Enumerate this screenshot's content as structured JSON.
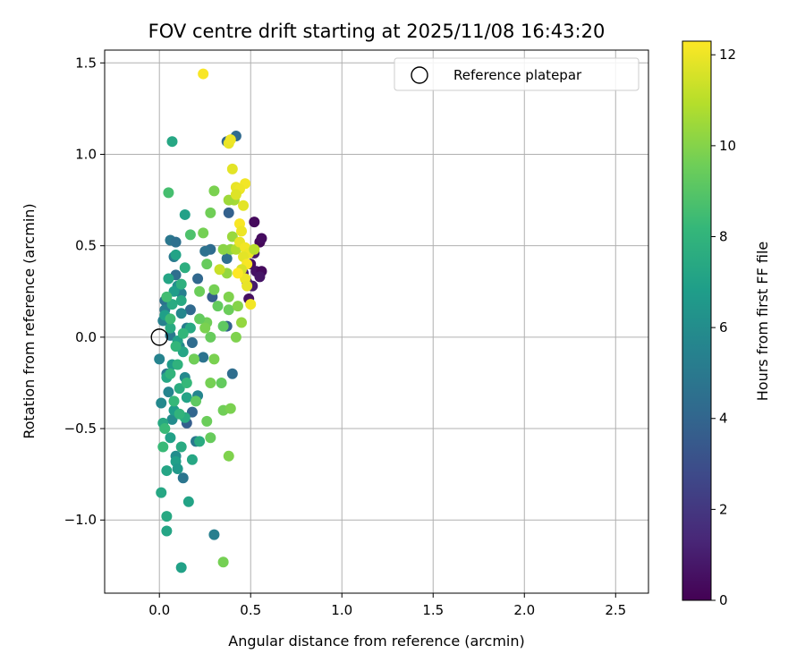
{
  "chart_data": {
    "type": "scatter",
    "title": "FOV centre drift starting at 2025/11/08 16:43:20",
    "xlabel": "Angular distance from reference (arcmin)",
    "ylabel": "Rotation from reference (arcmin)",
    "xlim": [
      -0.3,
      2.68
    ],
    "ylim": [
      -1.4,
      1.57
    ],
    "xticks": [
      0.0,
      0.5,
      1.0,
      1.5,
      2.0,
      2.5
    ],
    "xtick_labels": [
      "0.0",
      "0.5",
      "1.0",
      "1.5",
      "2.0",
      "2.5"
    ],
    "yticks": [
      -1.0,
      -0.5,
      0.0,
      0.5,
      1.0,
      1.5
    ],
    "ytick_labels": [
      "−1.0",
      "−0.5",
      "0.0",
      "0.5",
      "1.0",
      "1.5"
    ],
    "grid": true,
    "legend": {
      "position": "top-right",
      "entries": [
        "Reference platepar"
      ]
    },
    "reference_point": {
      "x": 0.0,
      "y": 0.0,
      "label": "Reference platepar"
    },
    "colorbar": {
      "label": "Hours from first FF file",
      "colormap": "viridis",
      "range": [
        0,
        12.3
      ],
      "ticks": [
        0,
        2,
        4,
        6,
        8,
        10,
        12
      ],
      "tick_labels": [
        "0",
        "2",
        "4",
        "6",
        "8",
        "10",
        "12"
      ],
      "stops": [
        "#440154",
        "#482878",
        "#3e4989",
        "#31688e",
        "#26828e",
        "#1f9e89",
        "#35b779",
        "#6ece58",
        "#b5de2b",
        "#fde725"
      ]
    },
    "points": [
      {
        "x": 0.52,
        "y": 0.63,
        "t": 0.3
      },
      {
        "x": 0.55,
        "y": 0.52,
        "t": 0.2
      },
      {
        "x": 0.56,
        "y": 0.54,
        "t": 0.4
      },
      {
        "x": 0.5,
        "y": 0.4,
        "t": 0.5
      },
      {
        "x": 0.53,
        "y": 0.36,
        "t": 0.6
      },
      {
        "x": 0.56,
        "y": 0.36,
        "t": 0.3
      },
      {
        "x": 0.55,
        "y": 0.33,
        "t": 0.7
      },
      {
        "x": 0.52,
        "y": 0.46,
        "t": 0.8
      },
      {
        "x": 0.49,
        "y": 0.21,
        "t": 0.5
      },
      {
        "x": 0.48,
        "y": 0.3,
        "t": 1.0
      },
      {
        "x": 0.51,
        "y": 0.28,
        "t": 0.9
      },
      {
        "x": 0.46,
        "y": 0.35,
        "t": 1.2
      },
      {
        "x": 0.42,
        "y": 1.1,
        "t": 4.2
      },
      {
        "x": 0.37,
        "y": 1.07,
        "t": 4.0
      },
      {
        "x": 0.38,
        "y": 0.68,
        "t": 3.8
      },
      {
        "x": 0.37,
        "y": 0.43,
        "t": 4.5
      },
      {
        "x": 0.28,
        "y": 0.48,
        "t": 4.3
      },
      {
        "x": 0.29,
        "y": 0.22,
        "t": 3.6
      },
      {
        "x": 0.25,
        "y": 0.47,
        "t": 4.6
      },
      {
        "x": 0.21,
        "y": 0.32,
        "t": 4.1
      },
      {
        "x": 0.37,
        "y": 0.06,
        "t": 3.9
      },
      {
        "x": 0.4,
        "y": -0.2,
        "t": 4.4
      },
      {
        "x": 0.24,
        "y": -0.11,
        "t": 4.7
      },
      {
        "x": 0.17,
        "y": 0.15,
        "t": 4.2
      },
      {
        "x": 0.15,
        "y": -0.47,
        "t": 3.7
      },
      {
        "x": 0.18,
        "y": -0.41,
        "t": 4.0
      },
      {
        "x": 0.13,
        "y": -0.77,
        "t": 4.8
      },
      {
        "x": 0.2,
        "y": -0.57,
        "t": 5.0
      },
      {
        "x": 0.06,
        "y": 0.53,
        "t": 4.9
      },
      {
        "x": 0.09,
        "y": 0.52,
        "t": 4.5
      },
      {
        "x": 0.08,
        "y": 0.44,
        "t": 5.1
      },
      {
        "x": 0.09,
        "y": 0.34,
        "t": 4.4
      },
      {
        "x": 0.03,
        "y": 0.2,
        "t": 4.6
      },
      {
        "x": 0.12,
        "y": 0.24,
        "t": 5.3
      },
      {
        "x": 0.15,
        "y": 0.05,
        "t": 5.2
      },
      {
        "x": 0.18,
        "y": -0.03,
        "t": 4.3
      },
      {
        "x": 0.0,
        "y": -0.12,
        "t": 5.5
      },
      {
        "x": 0.05,
        "y": -0.3,
        "t": 5.6
      },
      {
        "x": 0.11,
        "y": -0.05,
        "t": 5.7
      },
      {
        "x": 0.02,
        "y": 0.09,
        "t": 5.4
      },
      {
        "x": 0.07,
        "y": -0.45,
        "t": 5.9
      },
      {
        "x": 0.14,
        "y": -0.22,
        "t": 5.8
      },
      {
        "x": 0.09,
        "y": -0.65,
        "t": 6.0
      },
      {
        "x": 0.06,
        "y": 0.01,
        "t": 5.0
      },
      {
        "x": 0.21,
        "y": -0.32,
        "t": 5.6
      },
      {
        "x": 0.12,
        "y": 0.13,
        "t": 5.7
      },
      {
        "x": 0.04,
        "y": -0.2,
        "t": 4.9
      },
      {
        "x": 0.3,
        "y": -1.08,
        "t": 5.3
      },
      {
        "x": 0.03,
        "y": 0.15,
        "t": 5.2
      },
      {
        "x": 0.01,
        "y": -0.36,
        "t": 5.8
      },
      {
        "x": 0.1,
        "y": 0.28,
        "t": 6.1
      },
      {
        "x": 0.07,
        "y": 1.07,
        "t": 7.3
      },
      {
        "x": 0.14,
        "y": 0.67,
        "t": 7.0
      },
      {
        "x": 0.09,
        "y": 0.45,
        "t": 7.1
      },
      {
        "x": 0.05,
        "y": 0.32,
        "t": 7.2
      },
      {
        "x": 0.08,
        "y": 0.25,
        "t": 6.8
      },
      {
        "x": 0.12,
        "y": 0.2,
        "t": 7.4
      },
      {
        "x": 0.03,
        "y": 0.12,
        "t": 6.9
      },
      {
        "x": 0.06,
        "y": 0.05,
        "t": 7.5
      },
      {
        "x": 0.1,
        "y": -0.02,
        "t": 7.0
      },
      {
        "x": 0.13,
        "y": -0.08,
        "t": 7.2
      },
      {
        "x": 0.07,
        "y": -0.15,
        "t": 6.7
      },
      {
        "x": 0.04,
        "y": -0.22,
        "t": 7.3
      },
      {
        "x": 0.11,
        "y": -0.28,
        "t": 7.6
      },
      {
        "x": 0.15,
        "y": -0.33,
        "t": 7.1
      },
      {
        "x": 0.08,
        "y": -0.4,
        "t": 6.8
      },
      {
        "x": 0.02,
        "y": -0.47,
        "t": 7.4
      },
      {
        "x": 0.06,
        "y": -0.55,
        "t": 7.0
      },
      {
        "x": 0.12,
        "y": -0.6,
        "t": 7.5
      },
      {
        "x": 0.09,
        "y": -0.68,
        "t": 6.9
      },
      {
        "x": 0.04,
        "y": -0.73,
        "t": 7.2
      },
      {
        "x": 0.01,
        "y": -0.85,
        "t": 7.3
      },
      {
        "x": 0.16,
        "y": -0.9,
        "t": 7.1
      },
      {
        "x": 0.04,
        "y": -0.98,
        "t": 7.4
      },
      {
        "x": 0.04,
        "y": -1.06,
        "t": 7.2
      },
      {
        "x": 0.12,
        "y": -1.26,
        "t": 7.0
      },
      {
        "x": 0.22,
        "y": -0.57,
        "t": 7.5
      },
      {
        "x": 0.18,
        "y": -0.67,
        "t": 7.3
      },
      {
        "x": 0.14,
        "y": -0.44,
        "t": 7.6
      },
      {
        "x": 0.19,
        "y": -0.12,
        "t": 7.1
      },
      {
        "x": 0.17,
        "y": 0.05,
        "t": 7.4
      },
      {
        "x": 0.14,
        "y": 0.38,
        "t": 7.7
      },
      {
        "x": 0.1,
        "y": -0.72,
        "t": 6.6
      },
      {
        "x": 0.07,
        "y": 0.18,
        "t": 7.5
      },
      {
        "x": 0.05,
        "y": 0.79,
        "t": 8.6
      },
      {
        "x": 0.17,
        "y": 0.56,
        "t": 8.8
      },
      {
        "x": 0.06,
        "y": -0.2,
        "t": 8.0
      },
      {
        "x": 0.08,
        "y": -0.35,
        "t": 8.2
      },
      {
        "x": 0.13,
        "y": 0.02,
        "t": 8.1
      },
      {
        "x": 0.03,
        "y": -0.5,
        "t": 8.3
      },
      {
        "x": 0.1,
        "y": -0.15,
        "t": 7.9
      },
      {
        "x": 0.06,
        "y": 0.1,
        "t": 8.4
      },
      {
        "x": 0.11,
        "y": -0.42,
        "t": 8.0
      },
      {
        "x": 0.15,
        "y": -0.25,
        "t": 8.2
      },
      {
        "x": 0.04,
        "y": 0.22,
        "t": 8.5
      },
      {
        "x": 0.09,
        "y": -0.05,
        "t": 8.1
      },
      {
        "x": 0.02,
        "y": -0.6,
        "t": 8.3
      },
      {
        "x": 0.12,
        "y": 0.29,
        "t": 7.8
      },
      {
        "x": 0.24,
        "y": 0.57,
        "t": 9.7
      },
      {
        "x": 0.3,
        "y": 0.8,
        "t": 9.8
      },
      {
        "x": 0.28,
        "y": 0.68,
        "t": 9.6
      },
      {
        "x": 0.26,
        "y": 0.4,
        "t": 9.4
      },
      {
        "x": 0.22,
        "y": 0.25,
        "t": 9.5
      },
      {
        "x": 0.3,
        "y": 0.26,
        "t": 9.7
      },
      {
        "x": 0.32,
        "y": 0.17,
        "t": 9.3
      },
      {
        "x": 0.26,
        "y": 0.08,
        "t": 9.6
      },
      {
        "x": 0.28,
        "y": 0.0,
        "t": 9.4
      },
      {
        "x": 0.3,
        "y": -0.12,
        "t": 9.8
      },
      {
        "x": 0.35,
        "y": 0.06,
        "t": 9.2
      },
      {
        "x": 0.38,
        "y": 0.15,
        "t": 9.5
      },
      {
        "x": 0.42,
        "y": 0.0,
        "t": 9.9
      },
      {
        "x": 0.28,
        "y": -0.25,
        "t": 9.7
      },
      {
        "x": 0.34,
        "y": -0.25,
        "t": 9.3
      },
      {
        "x": 0.35,
        "y": -0.4,
        "t": 9.6
      },
      {
        "x": 0.39,
        "y": -0.39,
        "t": 9.8
      },
      {
        "x": 0.26,
        "y": -0.46,
        "t": 9.5
      },
      {
        "x": 0.28,
        "y": -0.55,
        "t": 9.4
      },
      {
        "x": 0.38,
        "y": -0.65,
        "t": 9.9
      },
      {
        "x": 0.35,
        "y": -1.23,
        "t": 9.7
      },
      {
        "x": 0.2,
        "y": -0.35,
        "t": 9.2
      },
      {
        "x": 0.19,
        "y": -0.12,
        "t": 9.6
      },
      {
        "x": 0.22,
        "y": 0.1,
        "t": 9.3
      },
      {
        "x": 0.25,
        "y": 0.05,
        "t": 9.8
      },
      {
        "x": 0.43,
        "y": 0.17,
        "t": 10.0
      },
      {
        "x": 0.45,
        "y": 0.08,
        "t": 10.3
      },
      {
        "x": 0.39,
        "y": 0.48,
        "t": 10.2
      },
      {
        "x": 0.35,
        "y": 0.48,
        "t": 10.1
      },
      {
        "x": 0.4,
        "y": 0.55,
        "t": 10.4
      },
      {
        "x": 0.41,
        "y": 0.75,
        "t": 10.6
      },
      {
        "x": 0.38,
        "y": 0.75,
        "t": 10.5
      },
      {
        "x": 0.37,
        "y": 0.35,
        "t": 10.3
      },
      {
        "x": 0.38,
        "y": 0.22,
        "t": 9.9
      },
      {
        "x": 0.42,
        "y": 0.48,
        "t": 10.8
      },
      {
        "x": 0.38,
        "y": 1.06,
        "t": 11.9
      },
      {
        "x": 0.39,
        "y": 1.08,
        "t": 12.0
      },
      {
        "x": 0.24,
        "y": 1.44,
        "t": 12.2
      },
      {
        "x": 0.4,
        "y": 0.92,
        "t": 11.8
      },
      {
        "x": 0.42,
        "y": 0.82,
        "t": 11.9
      },
      {
        "x": 0.47,
        "y": 0.84,
        "t": 12.1
      },
      {
        "x": 0.44,
        "y": 0.81,
        "t": 12.0
      },
      {
        "x": 0.42,
        "y": 0.78,
        "t": 11.7
      },
      {
        "x": 0.46,
        "y": 0.72,
        "t": 11.8
      },
      {
        "x": 0.44,
        "y": 0.62,
        "t": 12.2
      },
      {
        "x": 0.45,
        "y": 0.58,
        "t": 12.0
      },
      {
        "x": 0.44,
        "y": 0.52,
        "t": 11.9
      },
      {
        "x": 0.47,
        "y": 0.49,
        "t": 12.1
      },
      {
        "x": 0.49,
        "y": 0.46,
        "t": 12.0
      },
      {
        "x": 0.46,
        "y": 0.44,
        "t": 11.8
      },
      {
        "x": 0.48,
        "y": 0.4,
        "t": 12.2
      },
      {
        "x": 0.45,
        "y": 0.37,
        "t": 11.6
      },
      {
        "x": 0.47,
        "y": 0.32,
        "t": 12.0
      },
      {
        "x": 0.48,
        "y": 0.28,
        "t": 11.9
      },
      {
        "x": 0.5,
        "y": 0.18,
        "t": 12.1
      },
      {
        "x": 0.33,
        "y": 0.37,
        "t": 11.3
      },
      {
        "x": 0.52,
        "y": 0.48,
        "t": 11.0
      },
      {
        "x": 0.43,
        "y": 0.35,
        "t": 12.3
      }
    ]
  }
}
